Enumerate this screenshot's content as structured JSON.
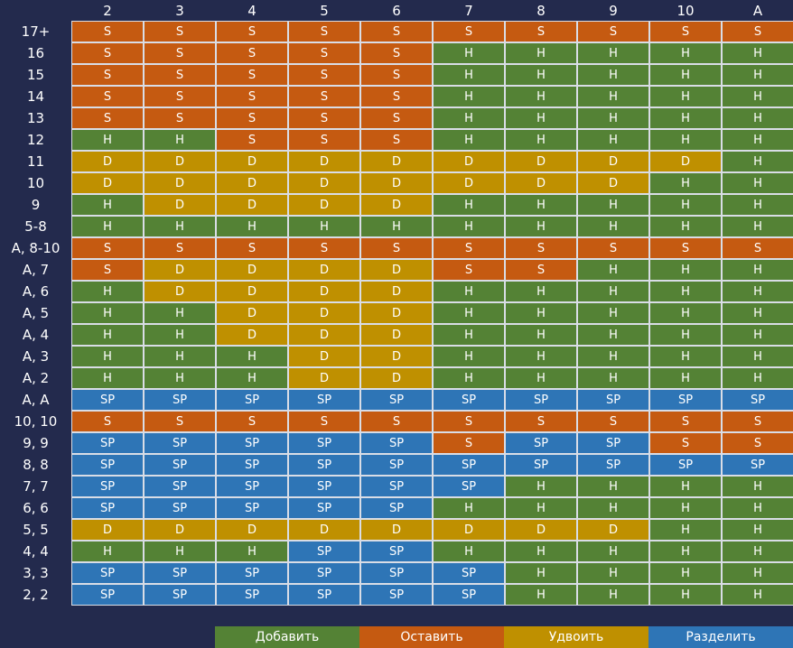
{
  "colors": {
    "H": "#548235",
    "S": "#c55a11",
    "D": "#bf9000",
    "SP": "#2e75b6",
    "background": "#232a4d"
  },
  "table": {
    "columns": [
      "2",
      "3",
      "4",
      "5",
      "6",
      "7",
      "8",
      "9",
      "10",
      "A"
    ],
    "rows": [
      {
        "label": "17+",
        "cells": [
          "S",
          "S",
          "S",
          "S",
          "S",
          "S",
          "S",
          "S",
          "S",
          "S"
        ]
      },
      {
        "label": "16",
        "cells": [
          "S",
          "S",
          "S",
          "S",
          "S",
          "H",
          "H",
          "H",
          "H",
          "H"
        ]
      },
      {
        "label": "15",
        "cells": [
          "S",
          "S",
          "S",
          "S",
          "S",
          "H",
          "H",
          "H",
          "H",
          "H"
        ]
      },
      {
        "label": "14",
        "cells": [
          "S",
          "S",
          "S",
          "S",
          "S",
          "H",
          "H",
          "H",
          "H",
          "H"
        ]
      },
      {
        "label": "13",
        "cells": [
          "S",
          "S",
          "S",
          "S",
          "S",
          "H",
          "H",
          "H",
          "H",
          "H"
        ]
      },
      {
        "label": "12",
        "cells": [
          "H",
          "H",
          "S",
          "S",
          "S",
          "H",
          "H",
          "H",
          "H",
          "H"
        ]
      },
      {
        "label": "11",
        "cells": [
          "D",
          "D",
          "D",
          "D",
          "D",
          "D",
          "D",
          "D",
          "D",
          "H"
        ]
      },
      {
        "label": "10",
        "cells": [
          "D",
          "D",
          "D",
          "D",
          "D",
          "D",
          "D",
          "D",
          "H",
          "H"
        ]
      },
      {
        "label": "9",
        "cells": [
          "H",
          "D",
          "D",
          "D",
          "D",
          "H",
          "H",
          "H",
          "H",
          "H"
        ]
      },
      {
        "label": "5-8",
        "cells": [
          "H",
          "H",
          "H",
          "H",
          "H",
          "H",
          "H",
          "H",
          "H",
          "H"
        ]
      },
      {
        "label": "A, 8-10",
        "cells": [
          "S",
          "S",
          "S",
          "S",
          "S",
          "S",
          "S",
          "S",
          "S",
          "S"
        ]
      },
      {
        "label": "A, 7",
        "cells": [
          "S",
          "D",
          "D",
          "D",
          "D",
          "S",
          "S",
          "H",
          "H",
          "H"
        ]
      },
      {
        "label": "A, 6",
        "cells": [
          "H",
          "D",
          "D",
          "D",
          "D",
          "H",
          "H",
          "H",
          "H",
          "H"
        ]
      },
      {
        "label": "A, 5",
        "cells": [
          "H",
          "H",
          "D",
          "D",
          "D",
          "H",
          "H",
          "H",
          "H",
          "H"
        ]
      },
      {
        "label": "A, 4",
        "cells": [
          "H",
          "H",
          "D",
          "D",
          "D",
          "H",
          "H",
          "H",
          "H",
          "H"
        ]
      },
      {
        "label": "A, 3",
        "cells": [
          "H",
          "H",
          "H",
          "D",
          "D",
          "H",
          "H",
          "H",
          "H",
          "H"
        ]
      },
      {
        "label": "A, 2",
        "cells": [
          "H",
          "H",
          "H",
          "D",
          "D",
          "H",
          "H",
          "H",
          "H",
          "H"
        ]
      },
      {
        "label": "A, A",
        "cells": [
          "SP",
          "SP",
          "SP",
          "SP",
          "SP",
          "SP",
          "SP",
          "SP",
          "SP",
          "SP"
        ]
      },
      {
        "label": "10, 10",
        "cells": [
          "S",
          "S",
          "S",
          "S",
          "S",
          "S",
          "S",
          "S",
          "S",
          "S"
        ]
      },
      {
        "label": "9, 9",
        "cells": [
          "SP",
          "SP",
          "SP",
          "SP",
          "SP",
          "S",
          "SP",
          "SP",
          "S",
          "S"
        ]
      },
      {
        "label": "8, 8",
        "cells": [
          "SP",
          "SP",
          "SP",
          "SP",
          "SP",
          "SP",
          "SP",
          "SP",
          "SP",
          "SP"
        ]
      },
      {
        "label": "7, 7",
        "cells": [
          "SP",
          "SP",
          "SP",
          "SP",
          "SP",
          "SP",
          "H",
          "H",
          "H",
          "H"
        ]
      },
      {
        "label": "6, 6",
        "cells": [
          "SP",
          "SP",
          "SP",
          "SP",
          "SP",
          "H",
          "H",
          "H",
          "H",
          "H"
        ]
      },
      {
        "label": "5, 5",
        "cells": [
          "D",
          "D",
          "D",
          "D",
          "D",
          "D",
          "D",
          "D",
          "H",
          "H"
        ]
      },
      {
        "label": "4, 4",
        "cells": [
          "H",
          "H",
          "H",
          "SP",
          "SP",
          "H",
          "H",
          "H",
          "H",
          "H"
        ]
      },
      {
        "label": "3, 3",
        "cells": [
          "SP",
          "SP",
          "SP",
          "SP",
          "SP",
          "SP",
          "H",
          "H",
          "H",
          "H"
        ]
      },
      {
        "label": "2, 2",
        "cells": [
          "SP",
          "SP",
          "SP",
          "SP",
          "SP",
          "SP",
          "H",
          "H",
          "H",
          "H"
        ]
      }
    ]
  },
  "legend": [
    {
      "label": "Добавить",
      "code": "H"
    },
    {
      "label": "Оставить",
      "code": "S"
    },
    {
      "label": "Удвоить",
      "code": "D"
    },
    {
      "label": "Разделить",
      "code": "SP"
    }
  ]
}
